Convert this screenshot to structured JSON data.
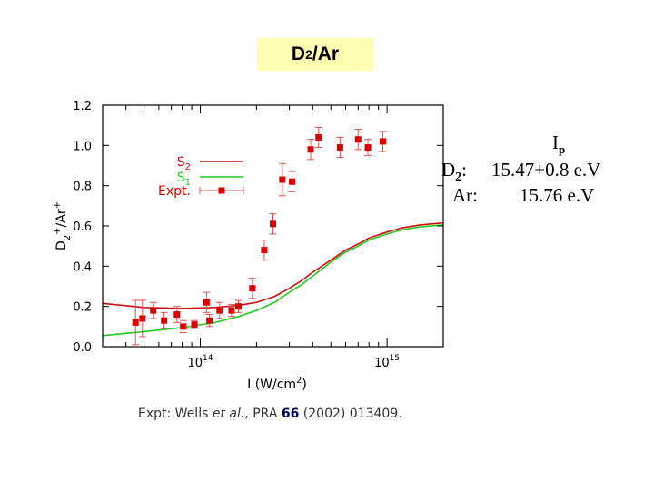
{
  "slide": {
    "title_main": "D",
    "title_sub": "2",
    "title_rest": "/Ar"
  },
  "ip": {
    "header_main": "I",
    "header_sub": "p",
    "d2_label_main": "D",
    "d2_label_sub": "2",
    "d2_label_colon": ":",
    "d2_value": "15.47+0.8 e.V",
    "ar_label": "Ar:",
    "ar_value": "15.76 e.V"
  },
  "caption": {
    "prefix": "Expt: Wells ",
    "etal": "et al.",
    "journal": ", PRA ",
    "volume": "66",
    "rest": " (2002) 013409."
  },
  "chart_data": {
    "type": "line",
    "title": "",
    "xlabel": "I (W/cm2)",
    "ylabel": "D2+/Ar+",
    "xscale": "log",
    "xlim": [
      30000000000000.0,
      2000000000000000.0
    ],
    "ylim": [
      0.0,
      1.2
    ],
    "y_ticks": [
      "0.0",
      "0.2",
      "0.4",
      "0.6",
      "0.8",
      "1.0",
      "1.2"
    ],
    "x_ticks": [
      {
        "base": "10",
        "exp": "14",
        "value": 100000000000000.0
      },
      {
        "base": "10",
        "exp": "15",
        "value": 1000000000000000.0
      }
    ],
    "colors": {
      "s2": "#cc1111",
      "s1": "#22cc22",
      "expt": "#dd0000",
      "errbar": "#dd5555",
      "frame": "#000000"
    },
    "legend": [
      {
        "id": "s2",
        "label_main": "S",
        "label_sub": "2"
      },
      {
        "id": "s1",
        "label_main": "S",
        "label_sub": "1"
      },
      {
        "id": "expt",
        "label_main": "Expt.",
        "label_sub": ""
      }
    ],
    "series": [
      {
        "name": "S2",
        "x": [
          30000000000000.0,
          50000000000000.0,
          80000000000000.0,
          120000000000000.0,
          160000000000000.0,
          200000000000000.0,
          250000000000000.0,
          300000000000000.0,
          350000000000000.0,
          400000000000000.0,
          500000000000000.0,
          600000000000000.0,
          700000000000000.0,
          800000000000000.0,
          1000000000000000.0,
          1200000000000000.0,
          1500000000000000.0,
          2000000000000000.0
        ],
        "y": [
          0.215,
          0.195,
          0.19,
          0.195,
          0.205,
          0.22,
          0.25,
          0.29,
          0.33,
          0.37,
          0.43,
          0.48,
          0.51,
          0.54,
          0.57,
          0.59,
          0.605,
          0.615
        ]
      },
      {
        "name": "S1",
        "x": [
          30000000000000.0,
          50000000000000.0,
          80000000000000.0,
          120000000000000.0,
          160000000000000.0,
          200000000000000.0,
          250000000000000.0,
          300000000000000.0,
          350000000000000.0,
          400000000000000.0,
          500000000000000.0,
          600000000000000.0,
          700000000000000.0,
          800000000000000.0,
          1000000000000000.0,
          1200000000000000.0,
          1500000000000000.0,
          2000000000000000.0
        ],
        "y": [
          0.055,
          0.075,
          0.095,
          0.12,
          0.15,
          0.18,
          0.22,
          0.27,
          0.31,
          0.35,
          0.42,
          0.47,
          0.5,
          0.53,
          0.56,
          0.58,
          0.595,
          0.605
        ]
      },
      {
        "name": "Expt.",
        "marker": "square",
        "points": [
          {
            "x": 45000000000000.0,
            "y": 0.12,
            "err": 0.11
          },
          {
            "x": 49000000000000.0,
            "y": 0.14,
            "err": 0.09
          },
          {
            "x": 56000000000000.0,
            "y": 0.18,
            "err": 0.04
          },
          {
            "x": 64000000000000.0,
            "y": 0.13,
            "err": 0.04
          },
          {
            "x": 75000000000000.0,
            "y": 0.16,
            "err": 0.04
          },
          {
            "x": 81000000000000.0,
            "y": 0.1,
            "err": 0.03
          },
          {
            "x": 93000000000000.0,
            "y": 0.11,
            "err": 0.02
          },
          {
            "x": 108000000000000.0,
            "y": 0.22,
            "err": 0.05
          },
          {
            "x": 112000000000000.0,
            "y": 0.13,
            "err": 0.03
          },
          {
            "x": 127000000000000.0,
            "y": 0.18,
            "err": 0.04
          },
          {
            "x": 147000000000000.0,
            "y": 0.18,
            "err": 0.03
          },
          {
            "x": 160000000000000.0,
            "y": 0.2,
            "err": 0.03
          },
          {
            "x": 190000000000000.0,
            "y": 0.29,
            "err": 0.05
          },
          {
            "x": 220000000000000.0,
            "y": 0.48,
            "err": 0.05
          },
          {
            "x": 245000000000000.0,
            "y": 0.61,
            "err": 0.05
          },
          {
            "x": 275000000000000.0,
            "y": 0.83,
            "err": 0.08
          },
          {
            "x": 310000000000000.0,
            "y": 0.82,
            "err": 0.05
          },
          {
            "x": 390000000000000.0,
            "y": 0.98,
            "err": 0.05
          },
          {
            "x": 430000000000000.0,
            "y": 1.04,
            "err": 0.05
          },
          {
            "x": 560000000000000.0,
            "y": 0.99,
            "err": 0.05
          },
          {
            "x": 700000000000000.0,
            "y": 1.03,
            "err": 0.05
          },
          {
            "x": 790000000000000.0,
            "y": 0.99,
            "err": 0.04
          },
          {
            "x": 950000000000000.0,
            "y": 1.02,
            "err": 0.05
          }
        ]
      }
    ]
  }
}
